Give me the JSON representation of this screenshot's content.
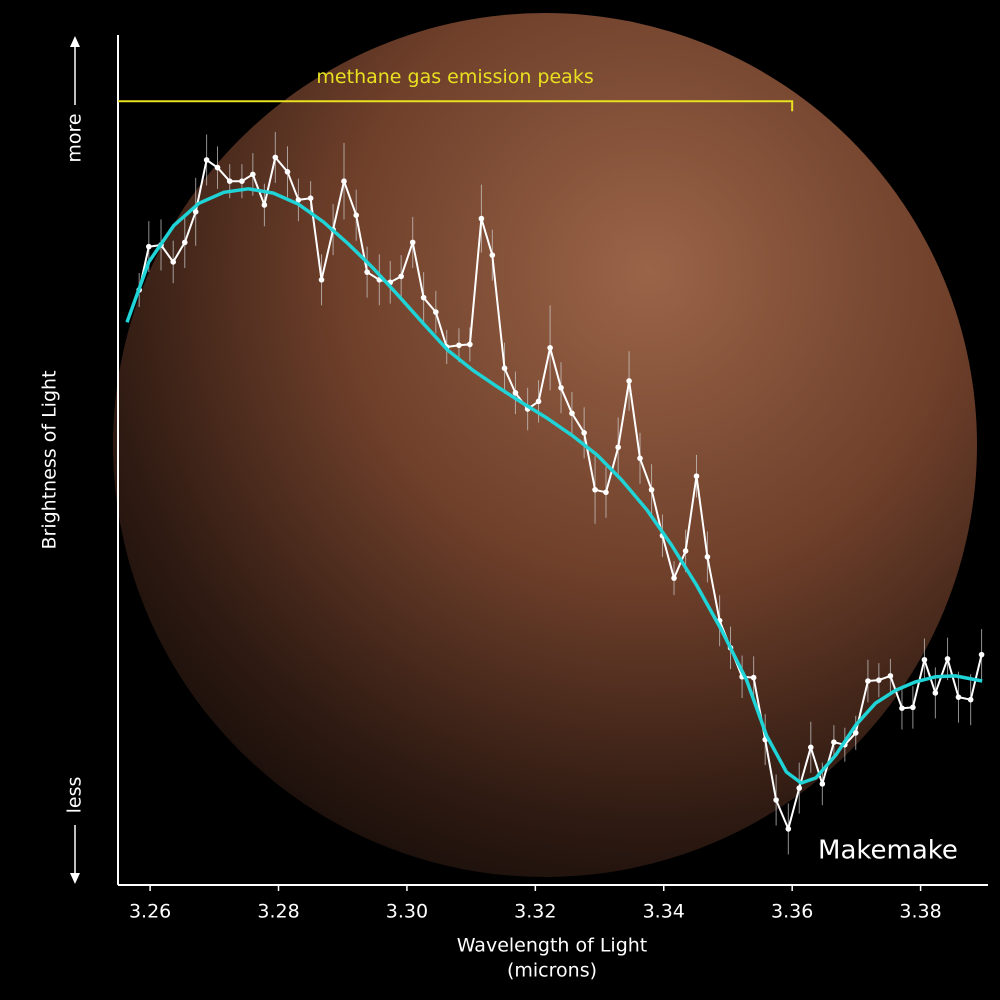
{
  "chart_data": {
    "type": "line",
    "title": "Makemake",
    "xlabel": "Wavelength of Light",
    "xlabel_unit": "(microns)",
    "ylabel": "Brightness of Light",
    "ylabel_top": "more",
    "ylabel_bottom": "less",
    "xlim": [
      3.255,
      3.3905
    ],
    "ylim": [
      0,
      100
    ],
    "xticks": [
      3.26,
      3.28,
      {
        "value": 3.3,
        "label": "3.30"
      },
      3.32,
      3.34,
      3.36,
      3.38
    ],
    "annotation": {
      "text": "methane gas emission peaks",
      "color": "#e8e020",
      "span": [
        3.255,
        3.36
      ],
      "y": 92.2
    },
    "series": [
      {
        "color": "#ffffff",
        "x": [
          3.2583,
          3.2598,
          3.2617,
          3.2636,
          3.2654,
          3.2671,
          3.2688,
          3.2705,
          3.2724,
          3.2743,
          3.276,
          3.2778,
          3.2795,
          3.2814,
          3.2831,
          3.285,
          3.2867,
          3.2885,
          3.2902,
          3.2921,
          3.2938,
          3.2957,
          3.2974,
          3.2991,
          3.3009,
          3.3026,
          3.3045,
          3.3062,
          3.3081,
          3.3098,
          3.3116,
          3.3133,
          3.3152,
          3.3169,
          3.3188,
          3.3205,
          3.3223,
          3.324,
          3.3257,
          3.3276,
          3.3293,
          3.331,
          3.3329,
          3.3346,
          3.3363,
          3.3381,
          3.3398,
          3.3416,
          3.3434,
          3.3451,
          3.3468,
          3.3487,
          3.3504,
          3.3522,
          3.354,
          3.3558,
          3.3575,
          3.3594,
          3.3611,
          3.3629,
          3.3647,
          3.3665,
          3.3682,
          3.3699,
          3.3718,
          3.3735,
          3.3753,
          3.3771,
          3.3788,
          3.3806,
          3.3823,
          3.3842,
          3.3859,
          3.3878,
          3.3895
        ],
        "values": [
          70.0,
          75.1,
          75.3,
          73.3,
          75.6,
          79.2,
          85.3,
          84.4,
          82.8,
          82.8,
          83.6,
          80.0,
          85.6,
          83.9,
          80.6,
          80.8,
          71.2,
          77.1,
          82.8,
          78.8,
          72.1,
          71.2,
          70.9,
          71.6,
          75.6,
          69.1,
          67.4,
          63.3,
          63.5,
          63.6,
          78.4,
          74.1,
          60.8,
          57.9,
          56.0,
          56.9,
          63.2,
          58.5,
          55.5,
          53.2,
          46.5,
          46.2,
          51.5,
          59.3,
          50.2,
          46.5,
          41.1,
          36.1,
          39.3,
          48.1,
          38.6,
          31.1,
          27.9,
          24.5,
          24.4,
          17.1,
          10.0,
          6.6,
          11.4,
          16.2,
          11.9,
          16.8,
          16.5,
          17.9,
          24.0,
          24.1,
          24.6,
          20.8,
          20.9,
          26.5,
          22.6,
          26.6,
          22.1,
          21.8,
          27.1
        ],
        "errors": [
          2,
          3,
          3,
          2.5,
          3,
          4,
          3,
          2.5,
          2,
          2,
          2.5,
          2.5,
          3,
          3,
          2.5,
          2,
          3,
          3,
          4.5,
          3,
          3,
          3,
          2.5,
          2.5,
          3,
          3,
          2.5,
          2,
          2,
          2,
          4,
          3,
          3,
          2.5,
          2.5,
          2.5,
          5,
          3,
          2.5,
          3,
          4,
          3,
          3.5,
          3.5,
          3,
          3,
          2.5,
          2,
          2.5,
          2.5,
          3,
          3,
          2.5,
          2.5,
          2.5,
          3,
          3,
          3,
          3,
          3,
          2.5,
          2,
          2,
          2,
          2.5,
          2,
          2,
          2.5,
          2.5,
          2.5,
          3,
          2.5,
          3,
          3,
          3
        ]
      },
      {
        "color": "#1fd3d6",
        "x": [
          3.2564,
          3.2598,
          3.2637,
          3.2676,
          3.2715,
          3.2753,
          3.2792,
          3.2831,
          3.287,
          3.2909,
          3.2947,
          3.2986,
          3.3025,
          3.3064,
          3.3102,
          3.3141,
          3.318,
          3.3219,
          3.3257,
          3.3296,
          3.3335,
          3.3374,
          3.3412,
          3.3451,
          3.349,
          3.3529,
          3.356,
          3.3591,
          3.3614,
          3.3637,
          3.3668,
          3.3699,
          3.373,
          3.3761,
          3.3792,
          3.3823,
          3.3854,
          3.3896
        ],
        "values": [
          66.2,
          73.3,
          77.6,
          80.2,
          81.5,
          81.9,
          81.4,
          80.1,
          78.0,
          75.4,
          72.6,
          69.4,
          66.1,
          62.9,
          60.6,
          58.6,
          56.7,
          54.9,
          52.9,
          50.6,
          47.6,
          44.1,
          40.0,
          35.3,
          30.0,
          24.1,
          17.6,
          13.3,
          12.0,
          12.6,
          15.3,
          18.8,
          21.4,
          22.9,
          23.9,
          24.5,
          24.6,
          24.0
        ]
      }
    ]
  }
}
